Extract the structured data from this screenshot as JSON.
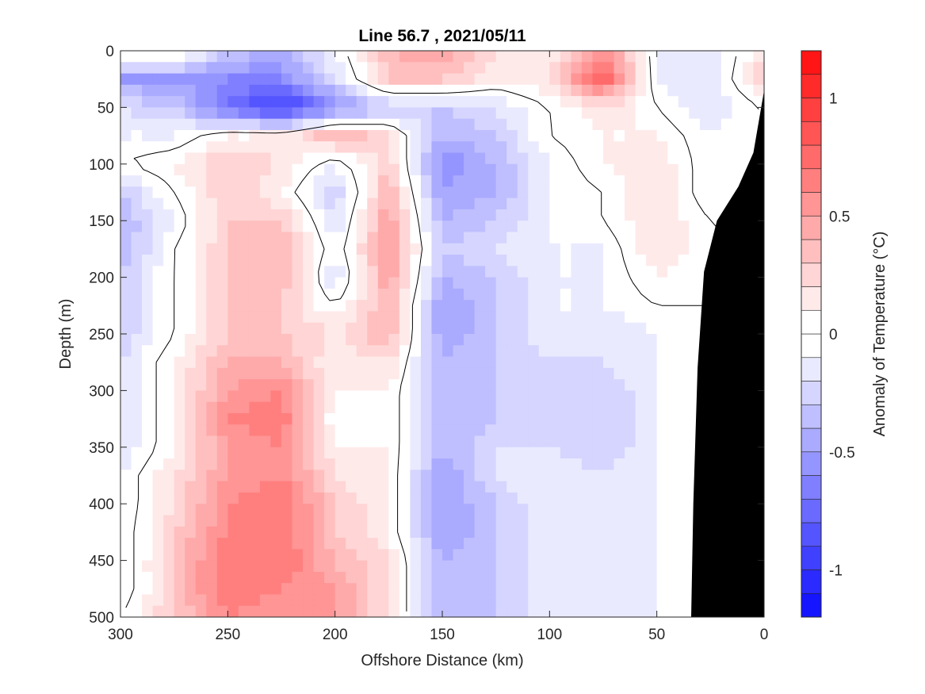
{
  "chart_data": {
    "type": "heatmap",
    "title": "Line 56.7 , 2021/05/11",
    "xlabel": "Offshore Distance (km)",
    "ylabel": "Depth (m)",
    "colorbar_label": "Anomaly of Temperature (°C)",
    "xlim": [
      300,
      0
    ],
    "ylim": [
      0,
      500
    ],
    "clim": [
      -1.2,
      1.2
    ],
    "x_ticks": [
      300,
      250,
      200,
      150,
      100,
      50,
      0
    ],
    "y_ticks": [
      0,
      50,
      100,
      150,
      200,
      250,
      300,
      350,
      400,
      450,
      500
    ],
    "colorbar_ticks": [
      {
        "value": 1,
        "label": "1"
      },
      {
        "value": 0.5,
        "label": "0.5"
      },
      {
        "value": 0,
        "label": "0"
      },
      {
        "value": -0.5,
        "label": "-0.5"
      },
      {
        "value": -1,
        "label": "-1"
      }
    ],
    "colormap": {
      "negative": "#0000ff",
      "zero": "#ffffff",
      "positive": "#ff0000"
    },
    "contour_interval": 0.1,
    "zero_contour_color": "#000000",
    "land_color": "#000000",
    "x": [
      300,
      275,
      250,
      225,
      200,
      175,
      150,
      125,
      100,
      75,
      50,
      25,
      0
    ],
    "y": [
      0,
      25,
      50,
      75,
      100,
      125,
      150,
      175,
      200,
      225,
      250,
      275,
      300,
      325,
      350,
      375,
      400,
      425,
      450,
      475,
      500
    ],
    "z": [
      [
        0.1,
        0.1,
        -0.3,
        -0.4,
        -0.1,
        0.4,
        0.5,
        0.2,
        0.1,
        0.6,
        -0.1,
        -0.2,
        0.2
      ],
      [
        -0.5,
        -0.5,
        -0.6,
        -0.6,
        -0.2,
        0.3,
        0.3,
        0.1,
        0.2,
        0.8,
        -0.1,
        -0.2,
        0.3
      ],
      [
        -0.2,
        -0.3,
        -0.7,
        -1.0,
        -0.6,
        -0.3,
        -0.3,
        -0.2,
        0.0,
        0.2,
        0.0,
        -0.2,
        null
      ],
      [
        -0.1,
        -0.1,
        0.1,
        0.1,
        0.4,
        0.2,
        -0.4,
        -0.3,
        0.0,
        0.1,
        0.1,
        -0.1,
        null
      ],
      [
        0.0,
        0.1,
        0.3,
        0.2,
        -0.1,
        0.3,
        -0.6,
        -0.4,
        -0.1,
        0.1,
        0.2,
        -0.1,
        null
      ],
      [
        -0.3,
        0.0,
        0.3,
        0.1,
        -0.3,
        0.4,
        -0.5,
        -0.4,
        -0.1,
        0.0,
        0.2,
        -0.1,
        null
      ],
      [
        -0.4,
        -0.1,
        0.3,
        0.3,
        -0.2,
        0.5,
        -0.4,
        -0.3,
        -0.1,
        0.0,
        0.2,
        0.0,
        null
      ],
      [
        -0.4,
        0.0,
        0.3,
        0.4,
        -0.1,
        0.5,
        -0.3,
        -0.2,
        -0.1,
        -0.1,
        0.2,
        0.0,
        null
      ],
      [
        -0.3,
        0.0,
        0.3,
        0.4,
        -0.2,
        0.5,
        -0.4,
        -0.3,
        -0.1,
        -0.1,
        0.1,
        null,
        null
      ],
      [
        -0.3,
        0.0,
        0.3,
        0.3,
        0.0,
        0.4,
        -0.5,
        -0.3,
        -0.1,
        -0.1,
        0.0,
        null,
        null
      ],
      [
        -0.3,
        0.0,
        0.3,
        0.3,
        0.2,
        0.4,
        -0.5,
        -0.3,
        -0.1,
        -0.2,
        -0.1,
        null,
        null
      ],
      [
        -0.2,
        0.1,
        0.4,
        0.4,
        0.1,
        0.2,
        -0.4,
        -0.3,
        -0.2,
        -0.2,
        -0.1,
        null,
        null
      ],
      [
        -0.2,
        0.1,
        0.5,
        0.6,
        0.1,
        0.1,
        -0.4,
        -0.3,
        -0.2,
        -0.3,
        -0.1,
        null,
        null
      ],
      [
        -0.2,
        0.1,
        0.6,
        0.7,
        0.0,
        0.1,
        -0.4,
        -0.3,
        -0.2,
        -0.3,
        -0.1,
        null,
        null
      ],
      [
        -0.2,
        0.1,
        0.5,
        0.6,
        0.1,
        0.1,
        -0.4,
        -0.2,
        -0.2,
        -0.3,
        -0.1,
        null,
        null
      ],
      [
        -0.1,
        0.2,
        0.5,
        0.6,
        0.2,
        0.1,
        -0.5,
        -0.2,
        -0.1,
        -0.2,
        -0.1,
        null,
        null
      ],
      [
        -0.1,
        0.2,
        0.6,
        0.7,
        0.3,
        0.1,
        -0.5,
        -0.3,
        -0.1,
        -0.2,
        -0.1,
        null,
        null
      ],
      [
        -0.1,
        0.3,
        0.6,
        0.7,
        0.3,
        0.1,
        -0.5,
        -0.3,
        -0.1,
        -0.2,
        -0.1,
        null,
        null
      ],
      [
        -0.1,
        0.3,
        0.7,
        0.7,
        0.4,
        0.2,
        -0.4,
        -0.3,
        -0.1,
        -0.2,
        -0.1,
        null,
        null
      ],
      [
        -0.1,
        0.3,
        0.7,
        0.6,
        0.5,
        0.2,
        -0.4,
        -0.3,
        -0.1,
        -0.2,
        -0.1,
        null,
        null
      ],
      [
        0.0,
        0.3,
        0.6,
        0.5,
        0.5,
        0.2,
        -0.4,
        -0.3,
        -0.1,
        -0.2,
        -0.1,
        null,
        null
      ]
    ],
    "bathymetry": [
      {
        "x": 0,
        "depth": 35
      },
      {
        "x": 5,
        "depth": 90
      },
      {
        "x": 12,
        "depth": 120
      },
      {
        "x": 22,
        "depth": 150
      },
      {
        "x": 28,
        "depth": 195
      },
      {
        "x": 31,
        "depth": 280
      },
      {
        "x": 33,
        "depth": 400
      },
      {
        "x": 34,
        "depth": 500
      }
    ]
  }
}
